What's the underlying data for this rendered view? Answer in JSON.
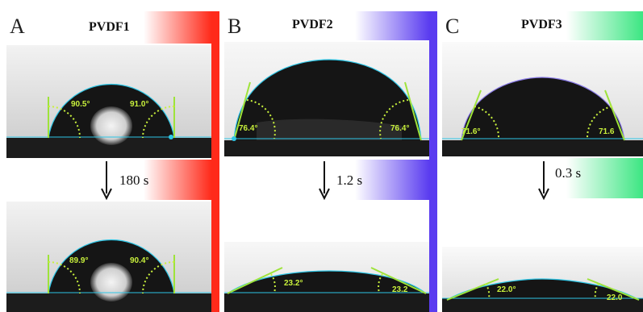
{
  "panels": [
    {
      "label": "A",
      "title": "PVDF1",
      "time": "180 s",
      "color": "#ff2a1a",
      "before": {
        "left": "90.5°",
        "right": "91.0°"
      },
      "after": {
        "left": "89.9°",
        "right": "90.4°"
      }
    },
    {
      "label": "B",
      "title": "PVDF2",
      "time": "1.2 s",
      "color": "#5a3cf0",
      "before": {
        "left": "76.4°",
        "right": "76.4°"
      },
      "after": {
        "left": "23.2°",
        "right": "23.2"
      }
    },
    {
      "label": "C",
      "title": "PVDF3",
      "time": "0.3 s",
      "color": "#3ce682",
      "before": {
        "left": "71.6°",
        "right": "71.6"
      },
      "after": {
        "left": "22.0°",
        "right": "22.0"
      }
    }
  ]
}
